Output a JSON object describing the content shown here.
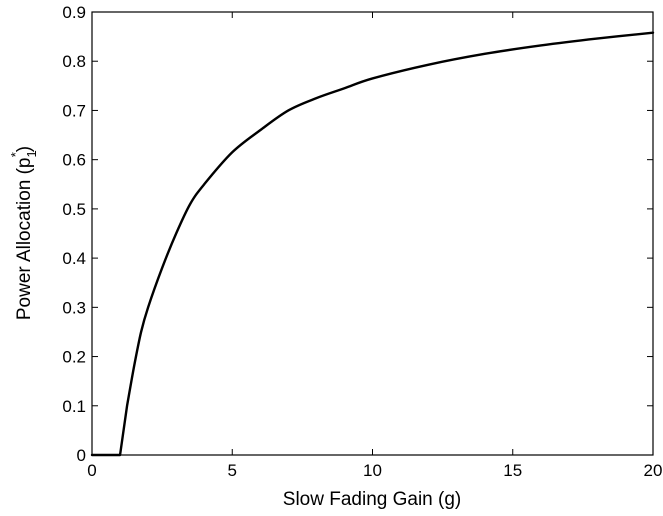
{
  "chart_data": {
    "type": "line",
    "title": "",
    "xlabel": "Slow Fading Gain (g)",
    "ylabel_main": "Power Allocation (p",
    "ylabel_sub": "1",
    "ylabel_sup": "*",
    "ylabel_close": ")",
    "xlim": [
      0,
      20
    ],
    "ylim": [
      0,
      0.9
    ],
    "xticks": [
      0,
      5,
      10,
      15,
      20
    ],
    "yticks": [
      0,
      0.1,
      0.2,
      0.3,
      0.4,
      0.5,
      0.6,
      0.7,
      0.8,
      0.9
    ],
    "grid": false,
    "line_color": "#000000",
    "series": [
      {
        "x": [
          0,
          0.5,
          1.0,
          1.25,
          1.5,
          1.75,
          2.0,
          2.5,
          3.0,
          3.5,
          4.0,
          5.0,
          6.0,
          7.0,
          8.0,
          9.0,
          10.0,
          12.0,
          14.0,
          16.0,
          18.0,
          20.0
        ],
        "values": [
          0,
          0,
          0,
          0.1,
          0.18,
          0.25,
          0.3,
          0.38,
          0.45,
          0.51,
          0.55,
          0.615,
          0.66,
          0.7,
          0.725,
          0.745,
          0.765,
          0.793,
          0.815,
          0.832,
          0.846,
          0.858
        ]
      }
    ]
  }
}
